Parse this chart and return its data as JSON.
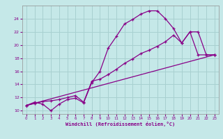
{
  "xlabel": "Windchill (Refroidissement éolien,°C)",
  "bg_color": "#c5e8e8",
  "grid_color": "#a8d0d0",
  "line_color": "#880088",
  "xlim": [
    -0.5,
    23.5
  ],
  "ylim": [
    9.5,
    26.0
  ],
  "xticks": [
    0,
    1,
    2,
    3,
    4,
    5,
    6,
    7,
    8,
    9,
    10,
    11,
    12,
    13,
    14,
    15,
    16,
    17,
    18,
    19,
    20,
    21,
    22,
    23
  ],
  "yticks": [
    10,
    12,
    14,
    16,
    18,
    20,
    22,
    24
  ],
  "series1_x": [
    0,
    1,
    2,
    3,
    4,
    5,
    6,
    7,
    8,
    9,
    10,
    11,
    12,
    13,
    14,
    15,
    16,
    17,
    18,
    19,
    20,
    21,
    22,
    23
  ],
  "series1_y": [
    10.8,
    11.3,
    11.0,
    10.0,
    11.0,
    11.7,
    11.9,
    11.2,
    14.3,
    16.0,
    19.5,
    21.3,
    23.2,
    23.9,
    24.7,
    25.2,
    25.2,
    24.0,
    22.5,
    20.3,
    22.0,
    18.5,
    18.5,
    18.5
  ],
  "series2_x": [
    0,
    1,
    2,
    3,
    4,
    5,
    6,
    7,
    8,
    9,
    10,
    11,
    12,
    13,
    14,
    15,
    16,
    17,
    18,
    19,
    20,
    21,
    22,
    23
  ],
  "series2_y": [
    10.8,
    11.1,
    11.4,
    11.5,
    11.7,
    12.0,
    12.3,
    11.3,
    14.5,
    14.8,
    15.5,
    16.3,
    17.2,
    17.9,
    18.7,
    19.2,
    19.8,
    20.5,
    21.5,
    20.3,
    22.0,
    22.0,
    18.5,
    18.5
  ],
  "series3_x": [
    0,
    23
  ],
  "series3_y": [
    10.8,
    18.5
  ]
}
